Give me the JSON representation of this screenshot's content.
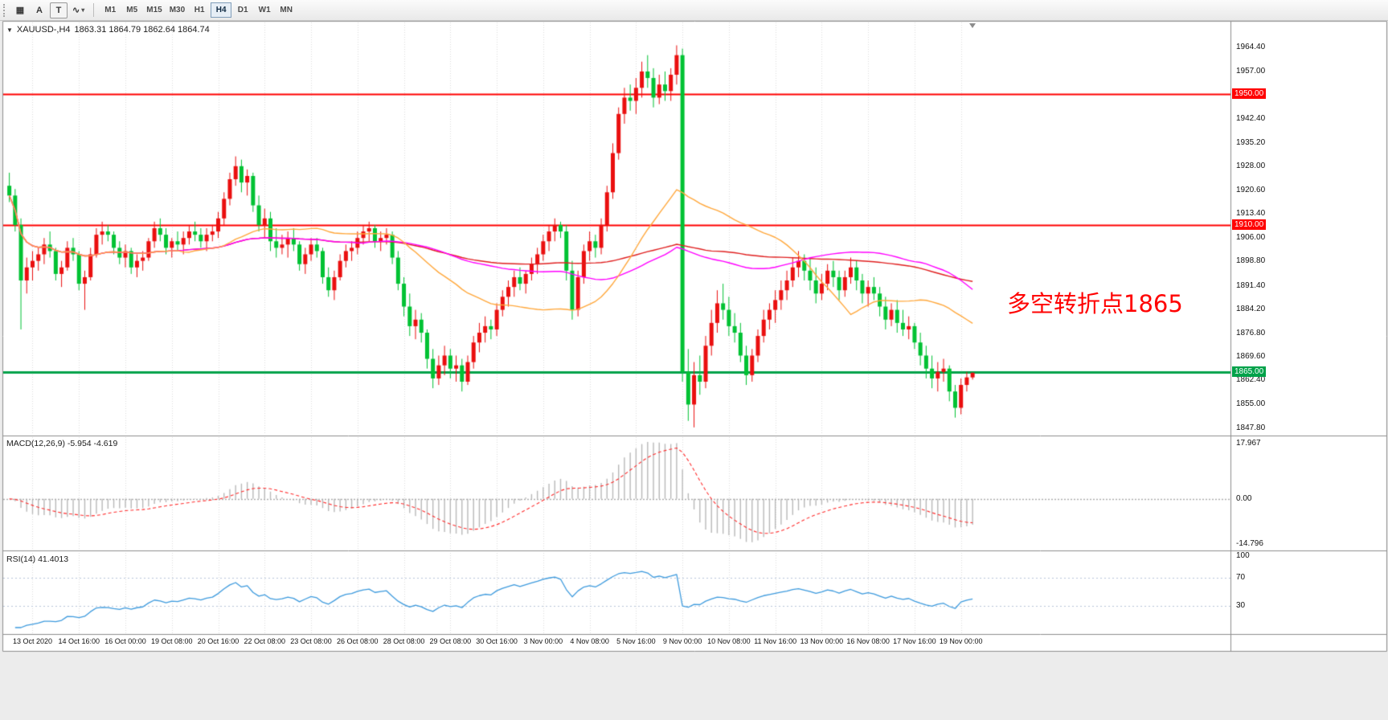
{
  "toolbar": {
    "tools": [
      {
        "name": "chart-grid",
        "glyph": "▦"
      },
      {
        "name": "arrow-tool",
        "glyph": "A"
      },
      {
        "name": "text-tool",
        "glyph": "T"
      },
      {
        "name": "shapes-tool",
        "glyph": "∿"
      }
    ],
    "chevron": "▾",
    "timeframes": [
      "M1",
      "M5",
      "M15",
      "M30",
      "H1",
      "H4",
      "D1",
      "W1",
      "MN"
    ],
    "active_timeframe": "H4"
  },
  "chart_header": {
    "collapse_icon": "▼",
    "symbol_timeframe": "XAUUSD-,H4",
    "ohlc": "1863.31 1864.79 1862.64 1864.74"
  },
  "chart_data": {
    "type": "candlestick",
    "symbol": "XAUUSD-",
    "timeframe": "H4",
    "ohlc_current": {
      "open": 1863.31,
      "high": 1864.79,
      "low": 1862.64,
      "close": 1864.74
    },
    "up_color": "#EA0F0F",
    "down_color": "#00C233",
    "price_range": [
      1846,
      1972
    ],
    "price_axis_ticks": [
      "1964.40",
      "1957.00",
      "1942.40",
      "1935.20",
      "1928.00",
      "1920.60",
      "1913.40",
      "1906.00",
      "1898.80",
      "1891.40",
      "1884.20",
      "1876.80",
      "1869.60",
      "1862.40",
      "1855.00",
      "1847.80"
    ],
    "time_axis_ticks": [
      "13 Oct 2020",
      "14 Oct 16:00",
      "16 Oct 00:00",
      "19 Oct 08:00",
      "20 Oct 16:00",
      "22 Oct 08:00",
      "23 Oct 08:00",
      "26 Oct 08:00",
      "28 Oct 08:00",
      "29 Oct 08:00",
      "30 Oct 16:00",
      "3 Nov 00:00",
      "4 Nov 08:00",
      "5 Nov 16:00",
      "9 Nov 00:00",
      "10 Nov 08:00",
      "11 Nov 16:00",
      "13 Nov 00:00",
      "16 Nov 08:00",
      "17 Nov 16:00",
      "19 Nov 00:00"
    ],
    "horizontal_lines": [
      {
        "price": 1950.0,
        "label": "1950.00",
        "color": "#FF0000",
        "width": 2
      },
      {
        "price": 1910.0,
        "label": "1910.00",
        "color": "#FF0000",
        "width": 2
      },
      {
        "price": 1865.0,
        "label": "1865.00",
        "color": "#00A24A",
        "width": 3
      }
    ],
    "annotation": {
      "text": "多空转折点1865",
      "color": "#FF0000"
    },
    "moving_averages": [
      {
        "period": 120,
        "color": "#E02020"
      },
      {
        "period": 60,
        "color": "#FF00FF"
      },
      {
        "period": 30,
        "color": "#FFA83C"
      }
    ],
    "candles": [
      [
        1922,
        1926,
        1917,
        1919
      ],
      [
        1919,
        1921,
        1908,
        1910
      ],
      [
        1910,
        1912,
        1878,
        1893
      ],
      [
        1893,
        1900,
        1889,
        1897
      ],
      [
        1897,
        1902,
        1893,
        1899
      ],
      [
        1899,
        1903,
        1896,
        1901
      ],
      [
        1901,
        1906,
        1898,
        1904
      ],
      [
        1904,
        1908,
        1900,
        1902
      ],
      [
        1902,
        1903,
        1893,
        1895
      ],
      [
        1895,
        1899,
        1891,
        1897
      ],
      [
        1897,
        1905,
        1896,
        1903
      ],
      [
        1903,
        1906,
        1899,
        1901
      ],
      [
        1901,
        1902,
        1890,
        1892
      ],
      [
        1892,
        1896,
        1884,
        1894
      ],
      [
        1894,
        1903,
        1893,
        1901
      ],
      [
        1901,
        1909,
        1900,
        1907
      ],
      [
        1907,
        1911,
        1904,
        1908
      ],
      [
        1908,
        1910,
        1905,
        1907
      ],
      [
        1907,
        1908,
        1901,
        1903
      ],
      [
        1903,
        1905,
        1898,
        1900
      ],
      [
        1900,
        1904,
        1897,
        1902
      ],
      [
        1902,
        1903,
        1895,
        1897
      ],
      [
        1897,
        1901,
        1894,
        1899
      ],
      [
        1899,
        1902,
        1896,
        1900
      ],
      [
        1900,
        1906,
        1899,
        1905
      ],
      [
        1905,
        1911,
        1903,
        1909
      ],
      [
        1909,
        1912,
        1905,
        1907
      ],
      [
        1907,
        1909,
        1901,
        1903
      ],
      [
        1903,
        1906,
        1900,
        1905
      ],
      [
        1905,
        1908,
        1902,
        1904
      ],
      [
        1904,
        1908,
        1901,
        1906
      ],
      [
        1906,
        1910,
        1904,
        1908
      ],
      [
        1908,
        1911,
        1905,
        1907
      ],
      [
        1907,
        1909,
        1903,
        1905
      ],
      [
        1905,
        1909,
        1902,
        1907
      ],
      [
        1907,
        1910,
        1905,
        1908
      ],
      [
        1908,
        1914,
        1906,
        1912
      ],
      [
        1912,
        1920,
        1910,
        1918
      ],
      [
        1918,
        1926,
        1916,
        1924
      ],
      [
        1924,
        1931,
        1922,
        1928
      ],
      [
        1928,
        1930,
        1920,
        1923
      ],
      [
        1923,
        1927,
        1919,
        1925
      ],
      [
        1925,
        1926,
        1914,
        1916
      ],
      [
        1916,
        1919,
        1908,
        1910
      ],
      [
        1910,
        1915,
        1906,
        1912
      ],
      [
        1912,
        1914,
        1902,
        1905
      ],
      [
        1905,
        1909,
        1900,
        1903
      ],
      [
        1903,
        1907,
        1901,
        1904
      ],
      [
        1904,
        1908,
        1900,
        1906
      ],
      [
        1906,
        1909,
        1902,
        1904
      ],
      [
        1904,
        1905,
        1896,
        1898
      ],
      [
        1898,
        1903,
        1895,
        1901
      ],
      [
        1901,
        1906,
        1899,
        1904
      ],
      [
        1904,
        1906,
        1900,
        1902
      ],
      [
        1902,
        1903,
        1892,
        1894
      ],
      [
        1894,
        1897,
        1888,
        1890
      ],
      [
        1890,
        1896,
        1887,
        1894
      ],
      [
        1894,
        1901,
        1893,
        1899
      ],
      [
        1899,
        1904,
        1897,
        1902
      ],
      [
        1902,
        1905,
        1899,
        1903
      ],
      [
        1903,
        1908,
        1901,
        1906
      ],
      [
        1906,
        1910,
        1904,
        1908
      ],
      [
        1908,
        1911,
        1905,
        1909
      ],
      [
        1909,
        1910,
        1903,
        1905
      ],
      [
        1905,
        1908,
        1902,
        1906
      ],
      [
        1906,
        1909,
        1904,
        1907
      ],
      [
        1907,
        1908,
        1898,
        1900
      ],
      [
        1900,
        1902,
        1890,
        1892
      ],
      [
        1892,
        1894,
        1882,
        1885
      ],
      [
        1885,
        1889,
        1876,
        1879
      ],
      [
        1879,
        1884,
        1875,
        1881
      ],
      [
        1881,
        1883,
        1874,
        1877
      ],
      [
        1877,
        1878,
        1866,
        1869
      ],
      [
        1869,
        1872,
        1860,
        1863
      ],
      [
        1863,
        1870,
        1861,
        1867
      ],
      [
        1867,
        1873,
        1864,
        1870
      ],
      [
        1870,
        1872,
        1863,
        1866
      ],
      [
        1866,
        1870,
        1862,
        1867
      ],
      [
        1867,
        1869,
        1859,
        1862
      ],
      [
        1862,
        1870,
        1861,
        1868
      ],
      [
        1868,
        1876,
        1866,
        1874
      ],
      [
        1874,
        1880,
        1871,
        1877
      ],
      [
        1877,
        1882,
        1874,
        1879
      ],
      [
        1879,
        1881,
        1875,
        1878
      ],
      [
        1878,
        1886,
        1876,
        1884
      ],
      [
        1884,
        1890,
        1882,
        1888
      ],
      [
        1888,
        1893,
        1885,
        1891
      ],
      [
        1891,
        1896,
        1888,
        1894
      ],
      [
        1894,
        1897,
        1890,
        1892
      ],
      [
        1892,
        1896,
        1889,
        1895
      ],
      [
        1895,
        1900,
        1893,
        1898
      ],
      [
        1898,
        1903,
        1895,
        1901
      ],
      [
        1901,
        1907,
        1899,
        1905
      ],
      [
        1905,
        1910,
        1902,
        1908
      ],
      [
        1908,
        1912,
        1905,
        1910
      ],
      [
        1910,
        1911,
        1906,
        1908
      ],
      [
        1908,
        1910,
        1893,
        1896
      ],
      [
        1896,
        1899,
        1881,
        1884
      ],
      [
        1884,
        1896,
        1882,
        1894
      ],
      [
        1894,
        1904,
        1892,
        1902
      ],
      [
        1902,
        1908,
        1899,
        1905
      ],
      [
        1905,
        1907,
        1900,
        1903
      ],
      [
        1903,
        1912,
        1901,
        1910
      ],
      [
        1910,
        1922,
        1908,
        1920
      ],
      [
        1920,
        1935,
        1918,
        1932
      ],
      [
        1932,
        1946,
        1930,
        1944
      ],
      [
        1944,
        1952,
        1941,
        1949
      ],
      [
        1949,
        1953,
        1945,
        1948
      ],
      [
        1948,
        1955,
        1944,
        1952
      ],
      [
        1952,
        1960,
        1949,
        1957
      ],
      [
        1957,
        1962,
        1952,
        1955
      ],
      [
        1955,
        1958,
        1946,
        1949
      ],
      [
        1949,
        1956,
        1947,
        1953
      ],
      [
        1953,
        1957,
        1948,
        1951
      ],
      [
        1951,
        1958,
        1948,
        1956
      ],
      [
        1956,
        1965,
        1953,
        1962
      ],
      [
        1962,
        1964,
        1862,
        1865
      ],
      [
        1865,
        1872,
        1850,
        1855
      ],
      [
        1855,
        1868,
        1848,
        1864
      ],
      [
        1864,
        1870,
        1858,
        1862
      ],
      [
        1862,
        1876,
        1860,
        1873
      ],
      [
        1873,
        1884,
        1870,
        1880
      ],
      [
        1880,
        1890,
        1877,
        1886
      ],
      [
        1886,
        1892,
        1881,
        1884
      ],
      [
        1884,
        1888,
        1876,
        1879
      ],
      [
        1879,
        1883,
        1874,
        1877
      ],
      [
        1877,
        1880,
        1868,
        1870
      ],
      [
        1870,
        1873,
        1861,
        1864
      ],
      [
        1864,
        1872,
        1862,
        1870
      ],
      [
        1870,
        1878,
        1868,
        1876
      ],
      [
        1876,
        1884,
        1874,
        1881
      ],
      [
        1881,
        1886,
        1878,
        1884
      ],
      [
        1884,
        1890,
        1880,
        1887
      ],
      [
        1887,
        1893,
        1884,
        1890
      ],
      [
        1890,
        1896,
        1887,
        1893
      ],
      [
        1893,
        1900,
        1891,
        1897
      ],
      [
        1897,
        1902,
        1894,
        1899
      ],
      [
        1899,
        1901,
        1893,
        1896
      ],
      [
        1896,
        1900,
        1890,
        1893
      ],
      [
        1893,
        1897,
        1886,
        1889
      ],
      [
        1889,
        1895,
        1887,
        1892
      ],
      [
        1892,
        1898,
        1890,
        1896
      ],
      [
        1896,
        1899,
        1891,
        1894
      ],
      [
        1894,
        1896,
        1887,
        1890
      ],
      [
        1890,
        1896,
        1888,
        1894
      ],
      [
        1894,
        1900,
        1892,
        1897
      ],
      [
        1897,
        1899,
        1890,
        1893
      ],
      [
        1893,
        1895,
        1886,
        1889
      ],
      [
        1889,
        1893,
        1885,
        1891
      ],
      [
        1891,
        1894,
        1887,
        1889
      ],
      [
        1889,
        1891,
        1882,
        1885
      ],
      [
        1885,
        1888,
        1878,
        1881
      ],
      [
        1881,
        1886,
        1879,
        1884
      ],
      [
        1884,
        1887,
        1877,
        1880
      ],
      [
        1880,
        1884,
        1876,
        1878
      ],
      [
        1878,
        1882,
        1875,
        1879
      ],
      [
        1879,
        1880,
        1872,
        1874
      ],
      [
        1874,
        1877,
        1867,
        1870
      ],
      [
        1870,
        1873,
        1863,
        1866
      ],
      [
        1866,
        1870,
        1860,
        1863
      ],
      [
        1863,
        1868,
        1859,
        1865
      ],
      [
        1865,
        1869,
        1862,
        1866
      ],
      [
        1866,
        1867,
        1856,
        1859
      ],
      [
        1859,
        1861,
        1851,
        1854
      ],
      [
        1854,
        1863,
        1852,
        1861
      ],
      [
        1861,
        1865,
        1859,
        1863.31
      ],
      [
        1863.31,
        1864.79,
        1862.64,
        1864.74
      ]
    ],
    "indicators": {
      "macd": {
        "label": "MACD(12,26,9) -5.954 -4.619",
        "fast": 12,
        "slow": 26,
        "signal": 9,
        "value": -5.954,
        "signal_value": -4.619,
        "axis_ticks": [
          "17.967",
          "0.00",
          "-14.796"
        ],
        "histogram_color": "#B9B9B9",
        "signal_color": "#FF2D2D"
      },
      "rsi": {
        "label": "RSI(14) 41.4013",
        "period": 14,
        "value": 41.4013,
        "levels": [
          70,
          30
        ],
        "axis_ticks": [
          "100",
          "70",
          "30"
        ],
        "line_color": "#3E9BDE"
      }
    }
  }
}
